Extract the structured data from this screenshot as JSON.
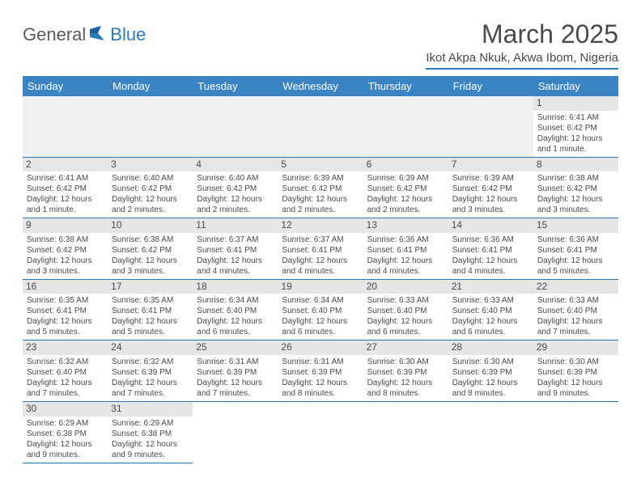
{
  "logo": {
    "part1": "General",
    "part2": "Blue"
  },
  "title": "March 2025",
  "subtitle": "Ikot Akpa Nkuk, Akwa Ibom, Nigeria",
  "colors": {
    "header_bg": "#3b84c4",
    "header_text": "#ffffff",
    "rule": "#2a7ab8",
    "daynum_bg": "#e6e6e6",
    "body_text": "#4a4a4a",
    "empty_bg": "#f0f0f0",
    "page_bg": "#ffffff"
  },
  "weekdays": [
    "Sunday",
    "Monday",
    "Tuesday",
    "Wednesday",
    "Thursday",
    "Friday",
    "Saturday"
  ],
  "leading_blanks": 6,
  "days": [
    {
      "n": 1,
      "sunrise": "6:41 AM",
      "sunset": "6:42 PM",
      "daylight": "12 hours and 1 minute."
    },
    {
      "n": 2,
      "sunrise": "6:41 AM",
      "sunset": "6:42 PM",
      "daylight": "12 hours and 1 minute."
    },
    {
      "n": 3,
      "sunrise": "6:40 AM",
      "sunset": "6:42 PM",
      "daylight": "12 hours and 2 minutes."
    },
    {
      "n": 4,
      "sunrise": "6:40 AM",
      "sunset": "6:42 PM",
      "daylight": "12 hours and 2 minutes."
    },
    {
      "n": 5,
      "sunrise": "6:39 AM",
      "sunset": "6:42 PM",
      "daylight": "12 hours and 2 minutes."
    },
    {
      "n": 6,
      "sunrise": "6:39 AM",
      "sunset": "6:42 PM",
      "daylight": "12 hours and 2 minutes."
    },
    {
      "n": 7,
      "sunrise": "6:39 AM",
      "sunset": "6:42 PM",
      "daylight": "12 hours and 3 minutes."
    },
    {
      "n": 8,
      "sunrise": "6:38 AM",
      "sunset": "6:42 PM",
      "daylight": "12 hours and 3 minutes."
    },
    {
      "n": 9,
      "sunrise": "6:38 AM",
      "sunset": "6:42 PM",
      "daylight": "12 hours and 3 minutes."
    },
    {
      "n": 10,
      "sunrise": "6:38 AM",
      "sunset": "6:42 PM",
      "daylight": "12 hours and 3 minutes."
    },
    {
      "n": 11,
      "sunrise": "6:37 AM",
      "sunset": "6:41 PM",
      "daylight": "12 hours and 4 minutes."
    },
    {
      "n": 12,
      "sunrise": "6:37 AM",
      "sunset": "6:41 PM",
      "daylight": "12 hours and 4 minutes."
    },
    {
      "n": 13,
      "sunrise": "6:36 AM",
      "sunset": "6:41 PM",
      "daylight": "12 hours and 4 minutes."
    },
    {
      "n": 14,
      "sunrise": "6:36 AM",
      "sunset": "6:41 PM",
      "daylight": "12 hours and 4 minutes."
    },
    {
      "n": 15,
      "sunrise": "6:36 AM",
      "sunset": "6:41 PM",
      "daylight": "12 hours and 5 minutes."
    },
    {
      "n": 16,
      "sunrise": "6:35 AM",
      "sunset": "6:41 PM",
      "daylight": "12 hours and 5 minutes."
    },
    {
      "n": 17,
      "sunrise": "6:35 AM",
      "sunset": "6:41 PM",
      "daylight": "12 hours and 5 minutes."
    },
    {
      "n": 18,
      "sunrise": "6:34 AM",
      "sunset": "6:40 PM",
      "daylight": "12 hours and 6 minutes."
    },
    {
      "n": 19,
      "sunrise": "6:34 AM",
      "sunset": "6:40 PM",
      "daylight": "12 hours and 6 minutes."
    },
    {
      "n": 20,
      "sunrise": "6:33 AM",
      "sunset": "6:40 PM",
      "daylight": "12 hours and 6 minutes."
    },
    {
      "n": 21,
      "sunrise": "6:33 AM",
      "sunset": "6:40 PM",
      "daylight": "12 hours and 6 minutes."
    },
    {
      "n": 22,
      "sunrise": "6:33 AM",
      "sunset": "6:40 PM",
      "daylight": "12 hours and 7 minutes."
    },
    {
      "n": 23,
      "sunrise": "6:32 AM",
      "sunset": "6:40 PM",
      "daylight": "12 hours and 7 minutes."
    },
    {
      "n": 24,
      "sunrise": "6:32 AM",
      "sunset": "6:39 PM",
      "daylight": "12 hours and 7 minutes."
    },
    {
      "n": 25,
      "sunrise": "6:31 AM",
      "sunset": "6:39 PM",
      "daylight": "12 hours and 7 minutes."
    },
    {
      "n": 26,
      "sunrise": "6:31 AM",
      "sunset": "6:39 PM",
      "daylight": "12 hours and 8 minutes."
    },
    {
      "n": 27,
      "sunrise": "6:30 AM",
      "sunset": "6:39 PM",
      "daylight": "12 hours and 8 minutes."
    },
    {
      "n": 28,
      "sunrise": "6:30 AM",
      "sunset": "6:39 PM",
      "daylight": "12 hours and 8 minutes."
    },
    {
      "n": 29,
      "sunrise": "6:30 AM",
      "sunset": "6:39 PM",
      "daylight": "12 hours and 9 minutes."
    },
    {
      "n": 30,
      "sunrise": "6:29 AM",
      "sunset": "6:38 PM",
      "daylight": "12 hours and 9 minutes."
    },
    {
      "n": 31,
      "sunrise": "6:29 AM",
      "sunset": "6:38 PM",
      "daylight": "12 hours and 9 minutes."
    }
  ],
  "labels": {
    "sunrise": "Sunrise:",
    "sunset": "Sunset:",
    "daylight": "Daylight:"
  }
}
